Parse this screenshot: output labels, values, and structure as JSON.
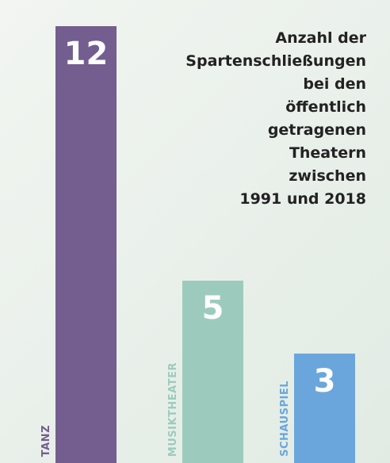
{
  "chart_data": {
    "type": "bar",
    "title": "Anzahl der\nSpartenschließungen\nbei den\nöffentlich\ngetragenen\nTheatern\nzwischen\n1991 und 2018",
    "categories": [
      "TANZ",
      "MUSIKTHEATER",
      "SCHAUSPIEL"
    ],
    "values": [
      12,
      5,
      3
    ],
    "colors": [
      "#735e8f",
      "#9ccbbd",
      "#6aa6dc"
    ]
  }
}
